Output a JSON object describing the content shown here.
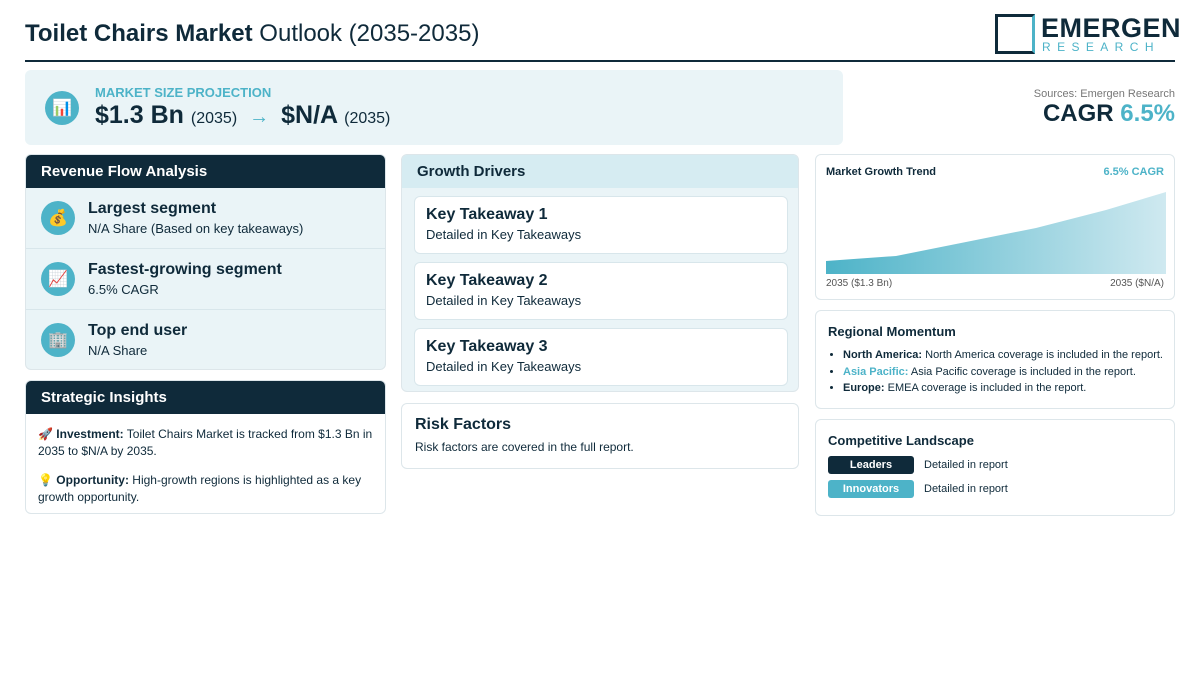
{
  "header": {
    "title_bold": "Toilet Chairs Market",
    "title_rest": "Outlook (2035-2035)",
    "logo_main": "EMERGEN",
    "logo_sub": "RESEARCH"
  },
  "projection": {
    "icon": "📊",
    "label": "MARKET SIZE PROJECTION",
    "start_value": "$1.3 Bn",
    "start_year": "(2035)",
    "arrow": "→",
    "end_value": "$N/A",
    "end_year": "(2035)"
  },
  "sources": "Sources: Emergen Research",
  "cagr": {
    "label": "CAGR",
    "value": "6.5%"
  },
  "revenue_flow": {
    "title": "Revenue Flow Analysis",
    "items": [
      {
        "icon": "💰",
        "title": "Largest segment",
        "text": "N/A Share (Based on key takeaways)"
      },
      {
        "icon": "📈",
        "title": "Fastest-growing segment",
        "text": "6.5% CAGR"
      },
      {
        "icon": "🏢",
        "title": "Top end user",
        "text": "N/A Share"
      }
    ]
  },
  "strategic_insights": {
    "title": "Strategic Insights",
    "items": [
      {
        "icon": "🚀",
        "label": "Investment:",
        "text": "Toilet Chairs Market is tracked from $1.3 Bn in 2035 to $N/A by 2035."
      },
      {
        "icon": "💡",
        "label": "Opportunity:",
        "text": "High-growth regions is highlighted as a key growth opportunity."
      }
    ]
  },
  "growth_drivers": {
    "title": "Growth Drivers",
    "items": [
      {
        "title": "Key Takeaway 1",
        "text": "Detailed in Key Takeaways"
      },
      {
        "title": "Key Takeaway 2",
        "text": "Detailed in Key Takeaways"
      },
      {
        "title": "Key Takeaway 3",
        "text": "Detailed in Key Takeaways"
      }
    ]
  },
  "risk_factors": {
    "title": "Risk Factors",
    "text": "Risk factors are covered in the full report."
  },
  "growth_trend": {
    "title": "Market Growth Trend",
    "cagr": "6.5% CAGR",
    "start_label": "2035 ($1.3 Bn)",
    "end_label": "2035 ($N/A)"
  },
  "regional_momentum": {
    "title": "Regional Momentum",
    "items": [
      {
        "region": "North America:",
        "text": "North America coverage is included in the report."
      },
      {
        "region": "Asia Pacific:",
        "text": "Asia Pacific coverage is included in the report."
      },
      {
        "region": "Europe:",
        "text": "EMEA coverage is included in the report."
      }
    ]
  },
  "competitive_landscape": {
    "title": "Competitive Landscape",
    "items": [
      {
        "label": "Leaders",
        "text": "Detailed in report"
      },
      {
        "label": "Innovators",
        "text": "Detailed in report"
      }
    ]
  }
}
